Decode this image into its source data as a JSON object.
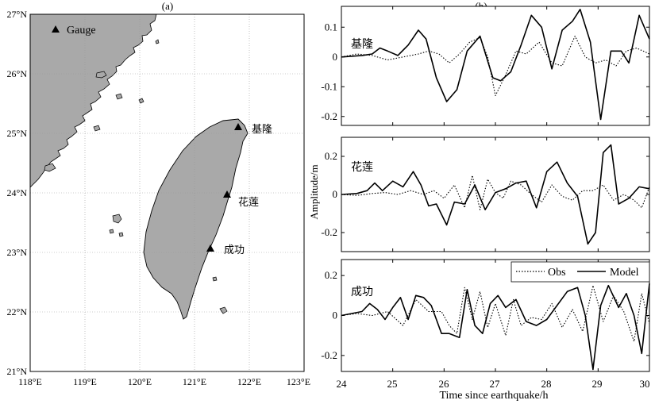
{
  "map_panel": {
    "panel_label": "(a)",
    "x_ticks": [
      "118°E",
      "119°E",
      "120°E",
      "121°E",
      "122°E",
      "123°E"
    ],
    "y_ticks": [
      "27°N",
      "26°N",
      "25°N",
      "24°N",
      "23°N",
      "22°N",
      "21°N"
    ],
    "legend_label": "Gauge",
    "land_color": "#a9a9a9",
    "gauges": [
      {
        "name": "基隆",
        "lon": 121.75,
        "lat": 25.13
      },
      {
        "name": "花莲",
        "lon": 121.62,
        "lat": 23.98
      },
      {
        "name": "成功",
        "lon": 121.38,
        "lat": 23.1
      }
    ]
  },
  "series_panel": {
    "panel_label": "(b)",
    "xlabel": "Time since earthquake/h",
    "ylabel": "Amplitude/m",
    "x_ticks": [
      "24",
      "25",
      "26",
      "27",
      "28",
      "29",
      "30"
    ],
    "legend": {
      "obs": "Obs",
      "model": "Model"
    }
  },
  "chart_data": [
    {
      "type": "line",
      "station": "基隆",
      "x_range": [
        24,
        30
      ],
      "ylim": [
        -0.23,
        0.17
      ],
      "y_ticks": [
        "0.1",
        "0",
        "-0.1",
        "-0.2"
      ],
      "series": [
        {
          "name": "Obs",
          "style": "dotted",
          "x": [
            24,
            24.3,
            24.6,
            24.9,
            25.2,
            25.5,
            25.7,
            25.9,
            26.1,
            26.3,
            26.5,
            26.7,
            26.85,
            27.0,
            27.2,
            27.4,
            27.6,
            27.85,
            28.1,
            28.3,
            28.55,
            28.75,
            28.95,
            29.15,
            29.35,
            29.55,
            29.75,
            30
          ],
          "y": [
            0,
            0.01,
            0.005,
            -0.01,
            0,
            0.01,
            0.02,
            0.01,
            -0.02,
            0.01,
            0.05,
            0.065,
            0,
            -0.13,
            -0.06,
            0.02,
            0.01,
            0.05,
            -0.02,
            -0.03,
            0.07,
            0.0,
            -0.02,
            -0.01,
            -0.03,
            0.02,
            0.03,
            0.01
          ]
        },
        {
          "name": "Model",
          "style": "solid",
          "x": [
            24,
            24.4,
            24.6,
            24.75,
            24.9,
            25.1,
            25.3,
            25.5,
            25.65,
            25.85,
            26.05,
            26.25,
            26.45,
            26.7,
            26.95,
            27.1,
            27.3,
            27.5,
            27.7,
            27.9,
            28.1,
            28.3,
            28.5,
            28.65,
            28.85,
            29.05,
            29.25,
            29.45,
            29.6,
            29.8,
            30
          ],
          "y": [
            0,
            0.005,
            0.01,
            0.03,
            0.02,
            0.005,
            0.04,
            0.09,
            0.06,
            -0.07,
            -0.15,
            -0.11,
            0.02,
            0.07,
            -0.07,
            -0.08,
            -0.05,
            0.04,
            0.14,
            0.1,
            -0.04,
            0.09,
            0.12,
            0.16,
            0.05,
            -0.21,
            0.02,
            0.02,
            -0.02,
            0.14,
            0.06
          ]
        }
      ]
    },
    {
      "type": "line",
      "station": "花莲",
      "x_range": [
        24,
        30
      ],
      "ylim": [
        -0.3,
        0.3
      ],
      "y_ticks": [
        "0.2",
        "0",
        "-0.2"
      ],
      "series": [
        {
          "name": "Obs",
          "style": "dotted",
          "x": [
            24,
            24.3,
            24.6,
            24.85,
            25.1,
            25.35,
            25.6,
            25.8,
            26.0,
            26.2,
            26.4,
            26.55,
            26.7,
            26.85,
            27.0,
            27.15,
            27.3,
            27.5,
            27.7,
            27.9,
            28.1,
            28.3,
            28.5,
            28.7,
            28.9,
            29.1,
            29.3,
            29.5,
            29.7,
            29.85,
            30
          ],
          "y": [
            0,
            -0.005,
            0.005,
            0.01,
            0.0,
            0.02,
            0.0,
            0.02,
            -0.02,
            0.05,
            -0.07,
            0.1,
            -0.08,
            0.08,
            0.01,
            -0.02,
            0.07,
            0.05,
            0.0,
            -0.04,
            0.05,
            -0.01,
            -0.03,
            0.02,
            0.02,
            0.05,
            -0.03,
            0.0,
            -0.03,
            -0.07,
            0.04
          ]
        },
        {
          "name": "Model",
          "style": "solid",
          "x": [
            24,
            24.3,
            24.5,
            24.65,
            24.8,
            25.0,
            25.2,
            25.4,
            25.55,
            25.7,
            25.85,
            26.05,
            26.2,
            26.4,
            26.6,
            26.8,
            27.0,
            27.2,
            27.4,
            27.6,
            27.8,
            28.0,
            28.2,
            28.4,
            28.6,
            28.8,
            28.95,
            29.1,
            29.25,
            29.4,
            29.6,
            29.8,
            30
          ],
          "y": [
            0,
            0.005,
            0.02,
            0.06,
            0.02,
            0.07,
            0.04,
            0.12,
            0.05,
            -0.06,
            -0.05,
            -0.16,
            -0.04,
            -0.05,
            0.05,
            -0.08,
            0.01,
            0.03,
            0.06,
            0.07,
            -0.07,
            0.12,
            0.17,
            0.06,
            -0.01,
            -0.26,
            -0.2,
            0.22,
            0.26,
            -0.05,
            -0.02,
            0.04,
            0.03
          ]
        }
      ]
    },
    {
      "type": "line",
      "station": "成功",
      "x_range": [
        24,
        30
      ],
      "ylim": [
        -0.28,
        0.28
      ],
      "y_ticks": [
        "0.2",
        "0",
        "-0.2"
      ],
      "series": [
        {
          "name": "Obs",
          "style": "dotted",
          "x": [
            24,
            24.3,
            24.6,
            24.9,
            25.2,
            25.45,
            25.7,
            25.95,
            26.1,
            26.25,
            26.4,
            26.55,
            26.7,
            26.85,
            27.0,
            27.2,
            27.35,
            27.5,
            27.7,
            27.9,
            28.1,
            28.3,
            28.5,
            28.7,
            28.9,
            29.1,
            29.3,
            29.5,
            29.7,
            29.85,
            30
          ],
          "y": [
            0,
            0.01,
            0.0,
            0.02,
            -0.05,
            0.08,
            0.02,
            0.02,
            -0.05,
            -0.09,
            0.14,
            -0.02,
            0.12,
            -0.06,
            0.06,
            -0.1,
            0.08,
            -0.05,
            -0.01,
            -0.02,
            0.06,
            -0.06,
            0.03,
            -0.08,
            0.15,
            -0.03,
            0.1,
            0.02,
            -0.13,
            0.11,
            -0.04
          ]
        },
        {
          "name": "Model",
          "style": "solid",
          "x": [
            24,
            24.4,
            24.55,
            24.7,
            24.85,
            25.0,
            25.15,
            25.3,
            25.45,
            25.6,
            25.75,
            25.95,
            26.1,
            26.3,
            26.45,
            26.6,
            26.75,
            26.9,
            27.05,
            27.2,
            27.4,
            27.6,
            27.8,
            28.0,
            28.2,
            28.4,
            28.6,
            28.75,
            28.9,
            29.05,
            29.2,
            29.4,
            29.55,
            29.7,
            29.85,
            30
          ],
          "y": [
            0,
            0.02,
            0.06,
            0.03,
            -0.02,
            0.04,
            0.09,
            -0.02,
            0.1,
            0.09,
            0.05,
            -0.09,
            -0.09,
            -0.11,
            0.13,
            -0.05,
            -0.09,
            0.06,
            0.1,
            0.04,
            0.08,
            -0.03,
            -0.05,
            -0.02,
            0.05,
            0.12,
            0.14,
            0.0,
            -0.27,
            0.05,
            0.15,
            0.04,
            0.11,
            0.0,
            -0.19,
            0.16
          ]
        }
      ]
    }
  ]
}
